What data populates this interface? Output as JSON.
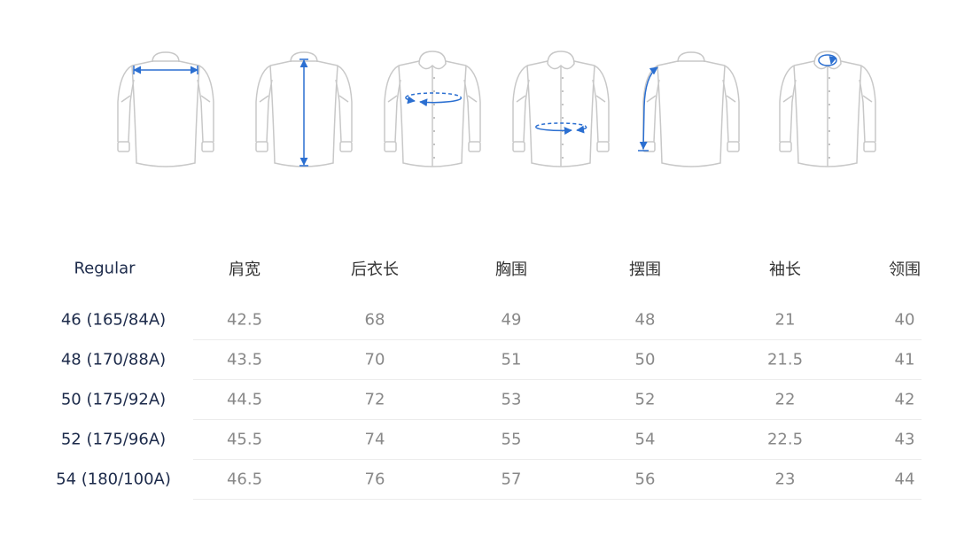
{
  "illustrations": [
    {
      "name": "shoulder-width",
      "view": "back"
    },
    {
      "name": "back-length",
      "view": "back"
    },
    {
      "name": "chest",
      "view": "front"
    },
    {
      "name": "hem",
      "view": "front"
    },
    {
      "name": "sleeve-length",
      "view": "back"
    },
    {
      "name": "collar",
      "view": "front"
    }
  ],
  "colors": {
    "outline": "#c8c8c8",
    "measure": "#2b6fd1",
    "header": "#1c2a4a",
    "value": "#888888"
  },
  "table": {
    "headers": [
      "Regular",
      "肩宽",
      "后衣长",
      "胸围",
      "摆围",
      "袖长",
      "领围"
    ],
    "rows": [
      {
        "size": "46 (165/84A)",
        "values": [
          "42.5",
          "68",
          "49",
          "48",
          "21",
          "40"
        ]
      },
      {
        "size": "48 (170/88A)",
        "values": [
          "43.5",
          "70",
          "51",
          "50",
          "21.5",
          "41"
        ]
      },
      {
        "size": "50 (175/92A)",
        "values": [
          "44.5",
          "72",
          "53",
          "52",
          "22",
          "42"
        ]
      },
      {
        "size": "52 (175/96A)",
        "values": [
          "45.5",
          "74",
          "55",
          "54",
          "22.5",
          "43"
        ]
      },
      {
        "size": "54 (180/100A)",
        "values": [
          "46.5",
          "76",
          "57",
          "56",
          "23",
          "44"
        ]
      }
    ]
  }
}
